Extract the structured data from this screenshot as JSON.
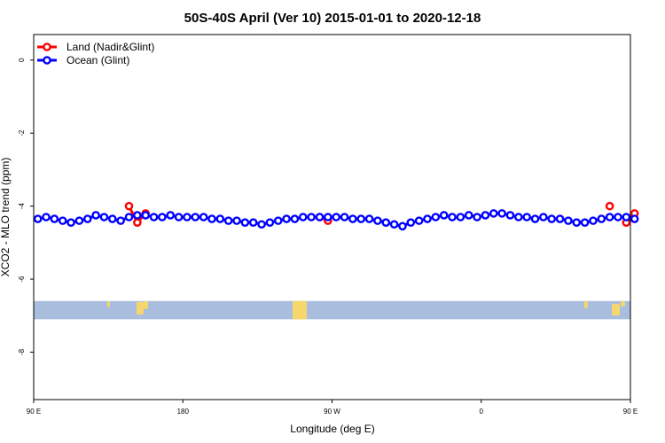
{
  "chart_data": {
    "type": "line",
    "title": "50S-40S April (Ver 10)   2015-01-01 to 2020-12-18",
    "xlabel": "Longitude (deg E)",
    "ylabel": "XCO2 - MLO trend (ppm)",
    "xlim": [
      90,
      450
    ],
    "ylim": [
      -9.3,
      0.7
    ],
    "x_ticks": [
      {
        "value": 90,
        "label": "90 E"
      },
      {
        "value": 180,
        "label": "180"
      },
      {
        "value": 270,
        "label": "90 W"
      },
      {
        "value": 360,
        "label": "0"
      },
      {
        "value": 450,
        "label": "90 E"
      },
      {
        "value": 540,
        "label": "180"
      }
    ],
    "y_ticks": [
      0,
      -2,
      -4,
      -6,
      -8
    ],
    "grid": false,
    "legend_position": "top-left",
    "map_strip": {
      "ylim": [
        -6.6,
        -7.1
      ],
      "ocean_color": "#a9bede",
      "land_color": "#f5d76e"
    },
    "series": [
      {
        "name": "Land (Nadir&Glint)",
        "color": "#ff0000",
        "x": [
          147.5,
          152.5,
          157.5,
          262.5,
          267.5,
          437.5,
          447.5,
          452.5
        ],
        "y": [
          -4.0,
          -4.45,
          -4.2,
          -4.3,
          -4.4,
          -4.0,
          -4.45,
          -4.2
        ]
      },
      {
        "name": "Ocean (Glint)",
        "color": "#0000ff",
        "x": [
          92.5,
          97.5,
          102.5,
          107.5,
          112.5,
          117.5,
          122.5,
          127.5,
          132.5,
          137.5,
          142.5,
          147.5,
          152.5,
          157.5,
          162.5,
          167.5,
          172.5,
          177.5,
          182.5,
          187.5,
          192.5,
          197.5,
          202.5,
          207.5,
          212.5,
          217.5,
          222.5,
          227.5,
          232.5,
          237.5,
          242.5,
          247.5,
          252.5,
          257.5,
          262.5,
          267.5,
          272.5,
          277.5,
          282.5,
          287.5,
          292.5,
          297.5,
          302.5,
          307.5,
          312.5,
          317.5,
          322.5,
          327.5,
          332.5,
          337.5,
          342.5,
          347.5,
          352.5,
          357.5,
          362.5,
          367.5,
          372.5,
          377.5,
          382.5,
          387.5,
          392.5,
          397.5,
          402.5,
          407.5,
          412.5,
          417.5,
          422.5,
          427.5,
          432.5,
          437.5,
          442.5,
          447.5,
          452.5
        ],
        "y": [
          -4.35,
          -4.3,
          -4.35,
          -4.4,
          -4.45,
          -4.4,
          -4.35,
          -4.25,
          -4.3,
          -4.35,
          -4.4,
          -4.3,
          -4.25,
          -4.25,
          -4.3,
          -4.3,
          -4.25,
          -4.3,
          -4.3,
          -4.3,
          -4.3,
          -4.35,
          -4.35,
          -4.4,
          -4.4,
          -4.45,
          -4.45,
          -4.5,
          -4.45,
          -4.4,
          -4.35,
          -4.35,
          -4.3,
          -4.3,
          -4.3,
          -4.3,
          -4.3,
          -4.3,
          -4.35,
          -4.35,
          -4.35,
          -4.4,
          -4.45,
          -4.5,
          -4.55,
          -4.45,
          -4.4,
          -4.35,
          -4.3,
          -4.25,
          -4.3,
          -4.3,
          -4.25,
          -4.3,
          -4.25,
          -4.2,
          -4.2,
          -4.25,
          -4.3,
          -4.3,
          -4.35,
          -4.3,
          -4.35,
          -4.35,
          -4.4,
          -4.45,
          -4.45,
          -4.4,
          -4.35,
          -4.3,
          -4.3,
          -4.3,
          -4.35
        ]
      }
    ]
  }
}
